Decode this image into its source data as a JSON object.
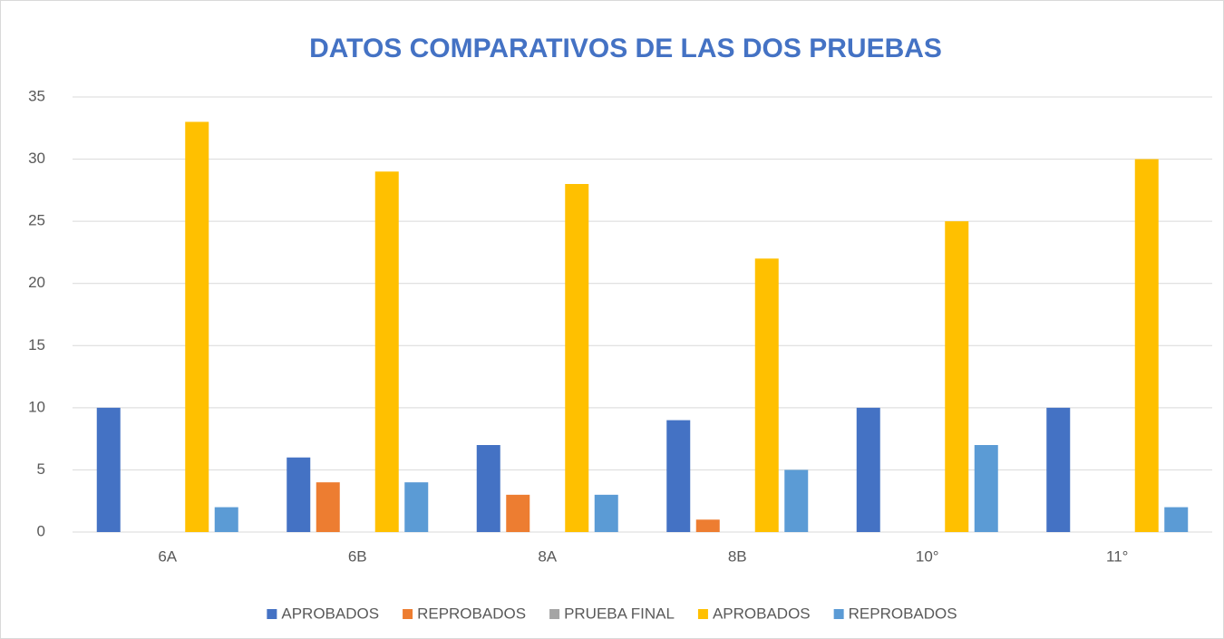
{
  "chart_data": {
    "type": "bar",
    "title": "DATOS COMPARATIVOS DE LAS DOS PRUEBAS",
    "categories": [
      "6A",
      "6B",
      "8A",
      "8B",
      "10°",
      "11°"
    ],
    "series": [
      {
        "name": "APROBADOS",
        "color": "#4472c4",
        "values": [
          10,
          6,
          7,
          9,
          10,
          10
        ]
      },
      {
        "name": "REPROBADOS",
        "color": "#ed7d31",
        "values": [
          0,
          4,
          3,
          1,
          0,
          0
        ]
      },
      {
        "name": "PRUEBA FINAL",
        "color": "#a5a5a5",
        "values": [
          null,
          null,
          null,
          null,
          null,
          null
        ]
      },
      {
        "name": "APROBADOS",
        "color": "#ffc000",
        "values": [
          33,
          29,
          28,
          22,
          25,
          30
        ]
      },
      {
        "name": "REPROBADOS",
        "color": "#5b9bd5",
        "values": [
          2,
          4,
          3,
          5,
          7,
          2
        ]
      }
    ],
    "ylim": [
      0,
      35
    ],
    "yticks": [
      0,
      5,
      10,
      15,
      20,
      25,
      30,
      35
    ],
    "grid": true,
    "legend": "bottom"
  }
}
